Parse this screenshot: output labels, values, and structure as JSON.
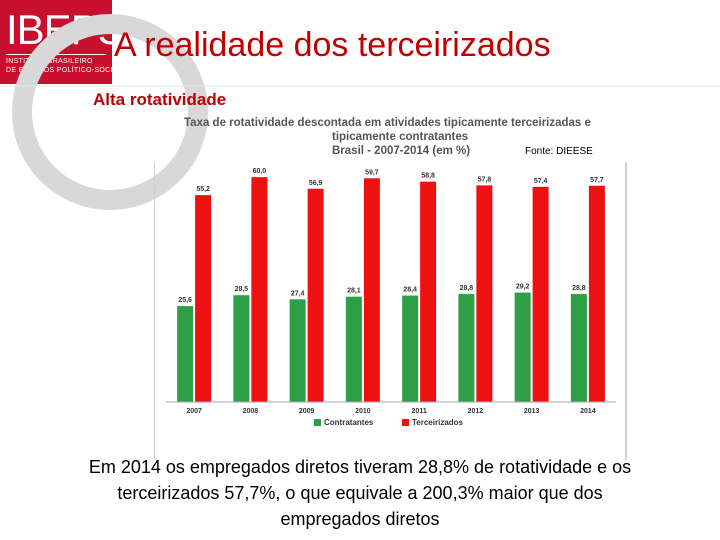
{
  "logo": {
    "name": "IBEPS",
    "line1": "INSTITUTO BRASILEIRO",
    "line2": "DE ESTUDOS POLÍTICO-SOCIAIS"
  },
  "slide": {
    "title": "A realidade dos terceirizados",
    "subtitle": "Alta rotatividade",
    "source": "Fonte: DIEESE",
    "footer": [
      "Em 2014 os empregados diretos tiveram 28,8% de rotatividade e os",
      "terceirizados 57,7%, o que equivale a  200,3% maior que dos",
      "empregados diretos"
    ]
  },
  "chart_data": {
    "type": "bar",
    "title_lines": [
      "Taxa de rotatividade descontada em atividades tipicamente terceirizadas e",
      "tipicamente contratantes",
      "Brasil - 2007-2014 (em %)"
    ],
    "categories": [
      "2007",
      "2008",
      "2009",
      "2010",
      "2011",
      "2012",
      "2013",
      "2014"
    ],
    "series": [
      {
        "name": "Contratantes",
        "color": "#2e9e47",
        "values": [
          25.6,
          28.5,
          27.4,
          28.1,
          28.4,
          28.8,
          29.2,
          28.8
        ],
        "labels": [
          "25,6",
          "28,5",
          "27,4",
          "28,1",
          "28,4",
          "28,8",
          "29,2",
          "28,8"
        ]
      },
      {
        "name": "Terceirizados",
        "color": "#ee1111",
        "values": [
          55.2,
          60.0,
          56.9,
          59.7,
          58.8,
          57.8,
          57.4,
          57.7
        ],
        "labels": [
          "55,2",
          "60,0",
          "56,9",
          "59,7",
          "58,8",
          "57,8",
          "57,4",
          "57,7"
        ]
      }
    ],
    "ylim": [
      0,
      65
    ],
    "legend": "bottom",
    "grid": false
  }
}
